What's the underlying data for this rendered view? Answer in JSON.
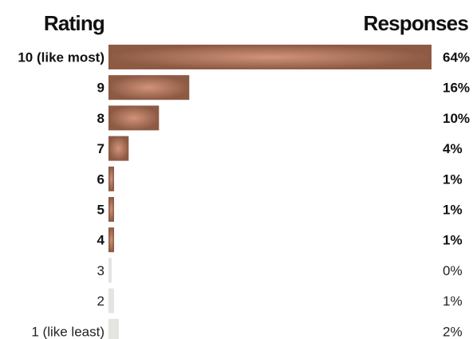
{
  "chart_data": {
    "type": "bar",
    "orientation": "horizontal",
    "title": "",
    "category_header": "Rating",
    "value_header": "Responses",
    "categories": [
      "10 (like most)",
      "9",
      "8",
      "7",
      "6",
      "5",
      "4",
      "3",
      "2",
      "1 (like least)"
    ],
    "values": [
      64,
      16,
      10,
      4,
      1,
      1,
      1,
      0,
      1,
      2
    ],
    "value_labels": [
      "64%",
      "16%",
      "10%",
      "4%",
      "1%",
      "1%",
      "1%",
      "0%",
      "1%",
      "2%"
    ],
    "highlighted": [
      true,
      true,
      true,
      true,
      true,
      true,
      true,
      false,
      false,
      false
    ],
    "xlim": [
      0,
      64
    ],
    "unit": "%",
    "grid": false,
    "colors": {
      "bar_highlight_center": "#d2937a",
      "bar_highlight_edge": "#8d5a44",
      "bar_muted": "#e4e4e0",
      "text": "#111111"
    }
  }
}
